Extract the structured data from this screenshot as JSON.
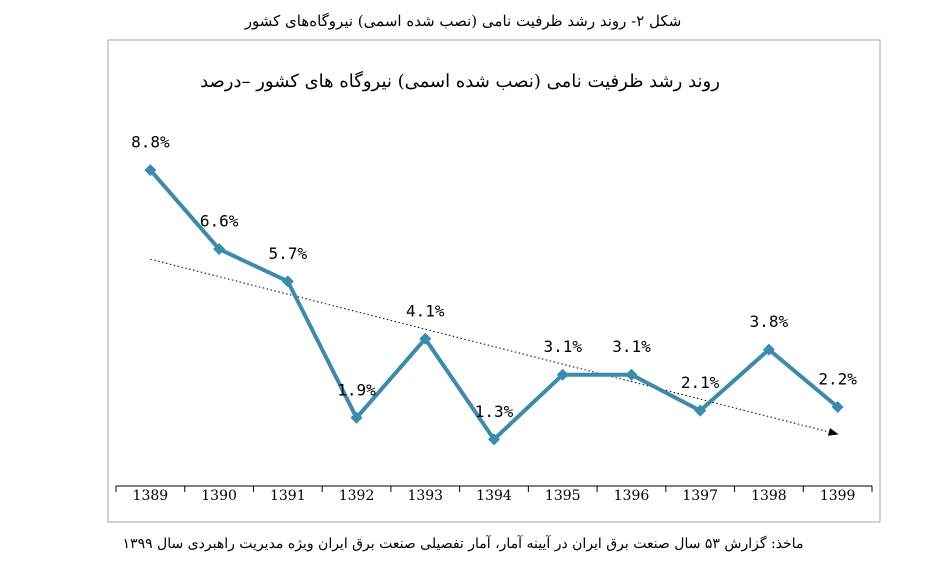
{
  "caption": "شکل ۲- روند رشد ظرفیت نامی (نصب شده اسمی) نیروگاه‌های کشور",
  "chart_data": {
    "type": "line",
    "title": "روند رشد ظرفیت نامی (نصب شده اسمی) نیروگاه های کشور –درصد",
    "categories": [
      "1389",
      "1390",
      "1391",
      "1392",
      "1393",
      "1394",
      "1395",
      "1396",
      "1397",
      "1398",
      "1399"
    ],
    "values": [
      8.8,
      6.6,
      5.7,
      1.9,
      4.1,
      1.3,
      3.1,
      3.1,
      2.1,
      3.8,
      2.2
    ],
    "value_labels": [
      "8.8%",
      "6.6%",
      "5.7%",
      "1.9%",
      "4.1%",
      "1.3%",
      "3.1%",
      "3.1%",
      "2.1%",
      "3.8%",
      "2.2%"
    ],
    "color": "#3b8bad",
    "ylim": [
      0,
      10
    ],
    "trendline": true
  },
  "source": "ماخذ: گزارش ۵۳ سال صنعت برق ایران در آیینه آمار، آمار تفصیلی صنعت برق ایران ویژه مدیریت راهبردی سال ۱۳۹۹"
}
